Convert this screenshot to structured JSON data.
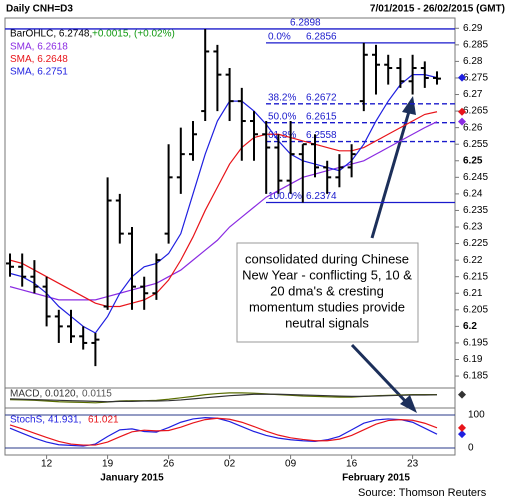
{
  "chart_data": {
    "type": "ohlc",
    "title": "Daily CNH=D3",
    "date_range": "7/01/2015 - 26/02/2015 (GMT)",
    "bar_label": "BarOHLC, 6.2748,",
    "bar_change": "+0.0015, (+0.02%)",
    "x": [
      null,
      null,
      null,
      "12",
      null,
      null,
      null,
      null,
      "19",
      null,
      null,
      null,
      null,
      "26",
      null,
      null,
      null,
      null,
      "02",
      null,
      null,
      null,
      null,
      "09",
      null,
      null,
      null,
      null,
      "16",
      null,
      null,
      null,
      null,
      "23",
      null,
      null
    ],
    "months": [
      {
        "label": "January 2015",
        "index": 10
      },
      {
        "label": "February 2015",
        "index": 30
      }
    ],
    "open": [
      6.219,
      6.218,
      6.215,
      6.212,
      6.203,
      6.2,
      6.197,
      6.195,
      6.206,
      6.238,
      6.228,
      6.212,
      6.21,
      6.228,
      6.245,
      6.252,
      6.265,
      6.283,
      6.276,
      6.268,
      6.262,
      6.258,
      6.254,
      6.244,
      6.252,
      6.255,
      6.248,
      6.245,
      6.248,
      6.268,
      6.282,
      6.279,
      6.278,
      6.274,
      6.278,
      6.275
    ],
    "high": [
      6.222,
      6.222,
      6.22,
      6.215,
      6.205,
      6.205,
      6.2,
      6.198,
      6.245,
      6.24,
      6.23,
      6.215,
      6.222,
      6.255,
      6.26,
      6.262,
      6.2898,
      6.285,
      6.278,
      6.272,
      6.265,
      6.262,
      6.258,
      6.262,
      6.255,
      6.258,
      6.25,
      6.252,
      6.255,
      6.2856,
      6.285,
      6.282,
      6.281,
      6.282,
      6.28,
      6.277
    ],
    "low": [
      6.215,
      6.212,
      6.21,
      6.2,
      6.195,
      6.195,
      6.193,
      6.188,
      6.205,
      6.225,
      6.205,
      6.205,
      6.208,
      6.225,
      6.24,
      6.25,
      6.262,
      6.265,
      6.262,
      6.25,
      6.25,
      6.24,
      6.24,
      6.24,
      6.2374,
      6.245,
      6.24,
      6.242,
      6.245,
      6.265,
      6.27,
      6.273,
      6.272,
      6.27,
      6.272,
      6.273
    ],
    "close": [
      6.218,
      6.215,
      6.212,
      6.203,
      6.2,
      6.197,
      6.195,
      6.196,
      6.238,
      6.228,
      6.212,
      6.21,
      6.22,
      6.245,
      6.252,
      6.258,
      6.283,
      6.276,
      6.268,
      6.262,
      6.258,
      6.254,
      6.244,
      6.252,
      6.255,
      6.248,
      6.245,
      6.248,
      6.252,
      6.282,
      6.279,
      6.278,
      6.274,
      6.278,
      6.275,
      6.2748
    ],
    "ylim": [
      6.182,
      6.2925
    ],
    "yticks": [
      6.185,
      6.19,
      6.195,
      6.2,
      6.205,
      6.21,
      6.215,
      6.22,
      6.225,
      6.23,
      6.235,
      6.24,
      6.245,
      6.25,
      6.255,
      6.26,
      6.265,
      6.27,
      6.275,
      6.28,
      6.285,
      6.29
    ],
    "bold_ticks": [
      6.2,
      6.25
    ],
    "bar_color": "#000000",
    "series": [
      {
        "name": "SMA, 6.2618",
        "color": "#8a2be2",
        "values": [
          6.212,
          6.211,
          6.21,
          6.209,
          6.208,
          6.208,
          6.208,
          6.208,
          6.209,
          6.21,
          6.211,
          6.212,
          6.213,
          6.215,
          6.217,
          6.22,
          6.223,
          6.226,
          6.23,
          6.233,
          6.236,
          6.239,
          6.241,
          6.243,
          6.245,
          6.246,
          6.247,
          6.248,
          6.249,
          6.25,
          6.252,
          6.254,
          6.256,
          6.258,
          6.26,
          6.2618
        ]
      },
      {
        "name": "SMA, 6.2648",
        "color": "#e8141a",
        "values": [
          6.22,
          6.219,
          6.217,
          6.215,
          6.213,
          6.211,
          6.209,
          6.207,
          6.206,
          6.206,
          6.207,
          6.208,
          6.21,
          6.214,
          6.22,
          6.227,
          6.235,
          6.242,
          6.249,
          6.254,
          6.257,
          6.258,
          6.258,
          6.257,
          6.256,
          6.255,
          6.254,
          6.253,
          6.253,
          6.254,
          6.256,
          6.258,
          6.26,
          6.262,
          6.264,
          6.2648
        ]
      },
      {
        "name": "SMA, 6.2751",
        "color": "#1f1fe0",
        "values": [
          6.216,
          6.215,
          6.213,
          6.21,
          6.206,
          6.203,
          6.2,
          6.198,
          6.203,
          6.21,
          6.215,
          6.218,
          6.219,
          6.222,
          6.228,
          6.24,
          6.252,
          6.262,
          6.268,
          6.268,
          6.265,
          6.261,
          6.256,
          6.252,
          6.25,
          6.249,
          6.248,
          6.247,
          6.25,
          6.255,
          6.262,
          6.268,
          6.273,
          6.276,
          6.276,
          6.2751
        ]
      }
    ],
    "fib_levels": [
      {
        "value": 6.2898,
        "dashed": false
      },
      {
        "label": "0.0%",
        "value": 6.2856,
        "dashed": false
      },
      {
        "label": "38.2%",
        "value": 6.2672,
        "dashed": true
      },
      {
        "label": "50.0%",
        "value": 6.2615,
        "dashed": true
      },
      {
        "label": "61.8%",
        "value": 6.2558,
        "dashed": true
      },
      {
        "label": "100.0%",
        "value": 6.2374,
        "dashed": false
      }
    ],
    "fib_color": "#1a1acc",
    "annotation": [
      "consolidated during Chinese",
      "New Year - conflicting 5, 10 &",
      "20 dma's & cresting",
      "momentum studies provide",
      "neutral signals"
    ],
    "macd": {
      "label": "MACD, 0.0120,",
      "signal_label": "0.0115",
      "ylim": [
        -0.02,
        0.025
      ],
      "series": [
        {
          "color": "#5a6e00",
          "values": [
            -0.002,
            -0.003,
            -0.004,
            -0.006,
            -0.008,
            -0.009,
            -0.01,
            -0.011,
            -0.009,
            -0.006,
            -0.005,
            -0.005,
            -0.004,
            -0.001,
            0.003,
            0.007,
            0.012,
            0.015,
            0.017,
            0.017,
            0.016,
            0.014,
            0.012,
            0.01,
            0.008,
            0.007,
            0.006,
            0.005,
            0.005,
            0.007,
            0.009,
            0.01,
            0.011,
            0.012,
            0.012,
            0.012
          ]
        },
        {
          "color": "#333333",
          "values": [
            0.0,
            -0.001,
            -0.002,
            -0.003,
            -0.004,
            -0.005,
            -0.006,
            -0.007,
            -0.008,
            -0.007,
            -0.007,
            -0.006,
            -0.006,
            -0.005,
            -0.003,
            0.0,
            0.003,
            0.006,
            0.009,
            0.011,
            0.013,
            0.013,
            0.013,
            0.012,
            0.011,
            0.01,
            0.009,
            0.008,
            0.007,
            0.007,
            0.008,
            0.009,
            0.01,
            0.011,
            0.011,
            0.0115
          ]
        }
      ]
    },
    "stoch": {
      "label": "StochS,",
      "k_label": "41.931,",
      "d_label": "61.021",
      "ylim": [
        -15,
        115
      ],
      "yticks": [
        0,
        100
      ],
      "series": [
        {
          "color": "#1f1fe0",
          "values": [
            60,
            45,
            30,
            18,
            10,
            8,
            6,
            12,
            35,
            55,
            58,
            50,
            48,
            62,
            78,
            88,
            92,
            90,
            80,
            65,
            50,
            38,
            30,
            25,
            22,
            20,
            25,
            35,
            55,
            75,
            85,
            88,
            86,
            78,
            60,
            41.931
          ]
        },
        {
          "color": "#e8141a",
          "values": [
            70,
            58,
            45,
            32,
            20,
            12,
            9,
            9,
            18,
            34,
            49,
            54,
            52,
            53,
            63,
            76,
            86,
            90,
            87,
            78,
            65,
            51,
            39,
            31,
            26,
            22,
            22,
            27,
            38,
            55,
            72,
            83,
            86,
            84,
            75,
            61.021
          ]
        }
      ]
    },
    "source": "Source: Thomson Reuters"
  }
}
